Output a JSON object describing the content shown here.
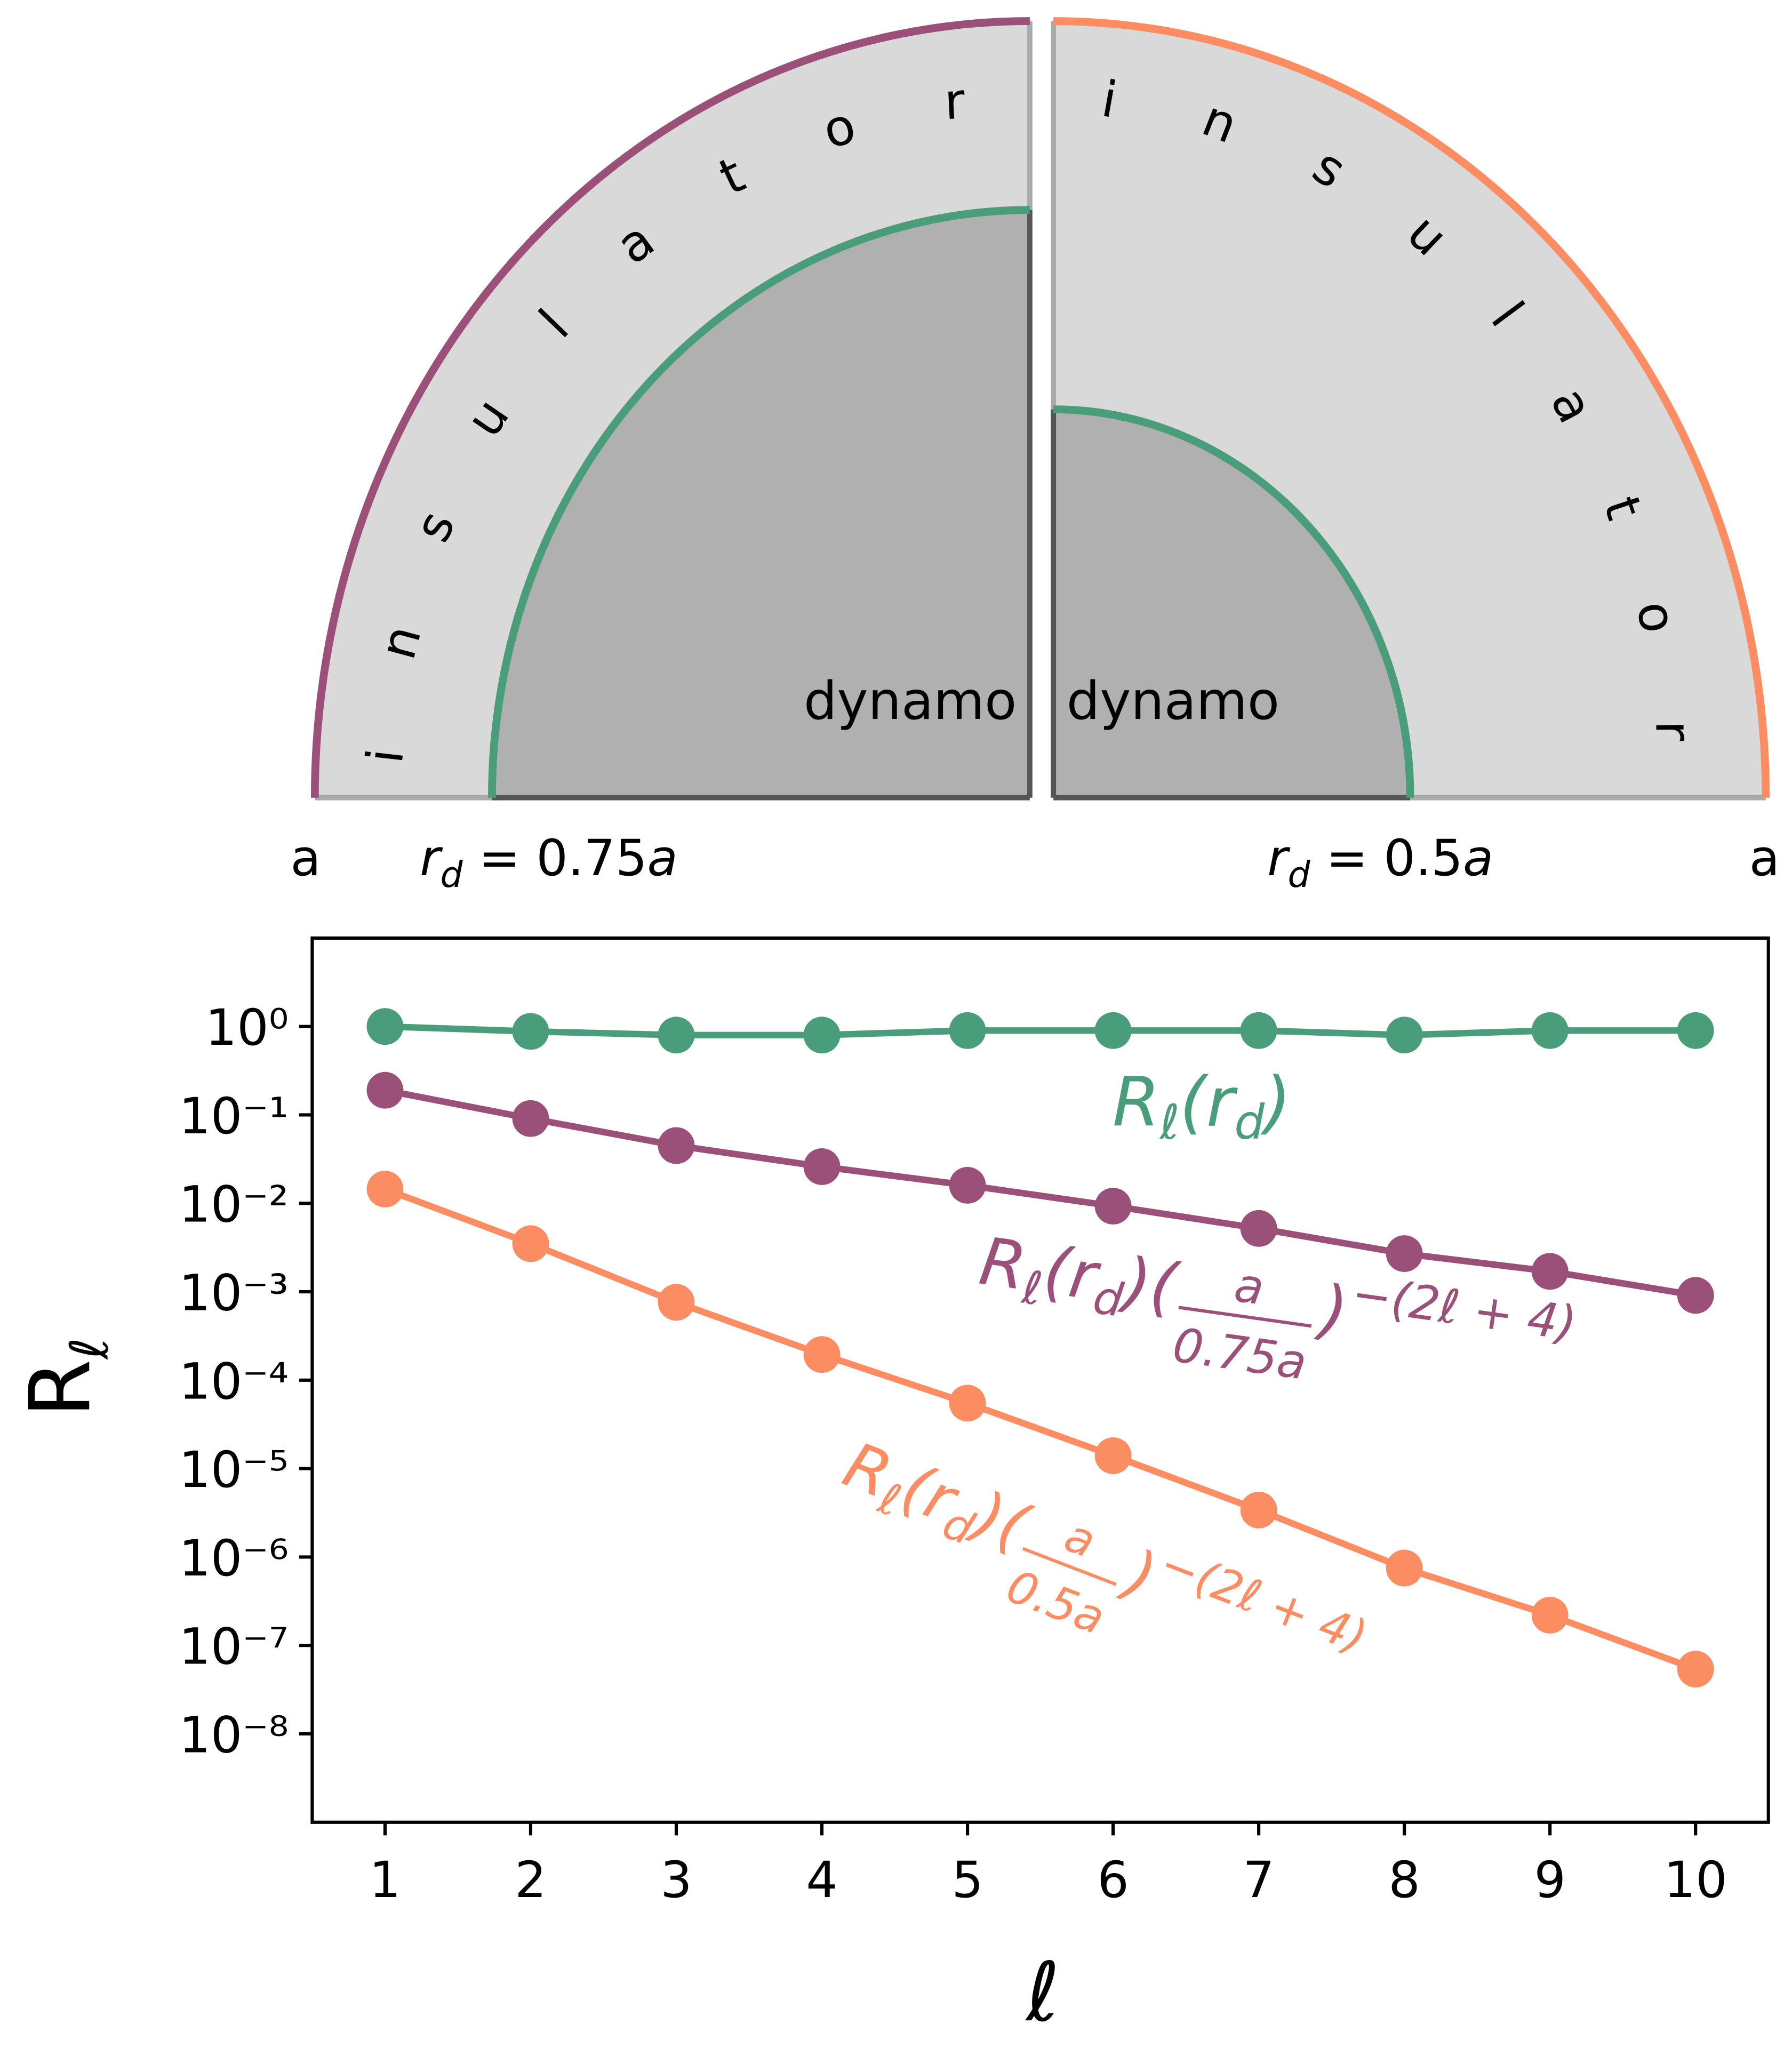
{
  "diagram": {
    "left": {
      "label": "insulator",
      "core": "dynamo",
      "edge": "a",
      "radius": [
        "r",
        "d",
        " = 0.75",
        "a"
      ]
    },
    "right": {
      "label": "insulator",
      "core": "dynamo",
      "edge": "a",
      "radius": [
        "r",
        "d",
        " = 0.5",
        "a"
      ]
    }
  },
  "chart_data": {
    "type": "line",
    "log_y": true,
    "xlabel": "ℓ",
    "ylabel": [
      "R",
      "ℓ"
    ],
    "x": [
      1,
      2,
      3,
      4,
      5,
      6,
      7,
      8,
      9,
      10
    ],
    "xlim": [
      0.5,
      10.5
    ],
    "ylim": [
      1e-09,
      10
    ],
    "xticks": [
      1,
      2,
      3,
      4,
      5,
      6,
      7,
      8,
      9,
      10
    ],
    "yticks": [
      {
        "value": 1,
        "label": "10⁰"
      },
      {
        "value": 0.1,
        "label": "10⁻¹"
      },
      {
        "value": 0.01,
        "label": "10⁻²"
      },
      {
        "value": 0.001,
        "label": "10⁻³"
      },
      {
        "value": 0.0001,
        "label": "10⁻⁴"
      },
      {
        "value": 1e-05,
        "label": "10⁻⁵"
      },
      {
        "value": 1e-06,
        "label": "10⁻⁶"
      },
      {
        "value": 1e-07,
        "label": "10⁻⁷"
      },
      {
        "value": 1e-08,
        "label": "10⁻⁸"
      }
    ],
    "series": [
      {
        "label": [
          "R",
          "ℓ",
          "(r",
          "d",
          ")"
        ],
        "color": "#4a9d7a",
        "values": [
          1.0,
          0.88,
          0.8,
          0.8,
          0.9,
          0.9,
          0.9,
          0.8,
          0.9,
          0.9
        ]
      },
      {
        "label": [
          "R",
          "ℓ",
          "(r",
          "d",
          ")",
          "(",
          "a",
          "0.75a",
          ")",
          "−(2ℓ + 4)"
        ],
        "color": "#9a5078",
        "values": [
          0.19,
          0.091,
          0.045,
          0.026,
          0.016,
          0.0093,
          0.0052,
          0.0027,
          0.0017,
          0.00091
        ]
      },
      {
        "label": [
          "R",
          "ℓ",
          "(r",
          "d",
          ")",
          "(",
          "a",
          "0.5a",
          ")",
          "−(2ℓ + 4)"
        ],
        "color": "#fc8d62",
        "values": [
          0.0145,
          0.0035,
          0.00076,
          0.000195,
          5.5e-05,
          1.4e-05,
          3.4e-06,
          7.5e-07,
          2.2e-07,
          5.4e-08
        ]
      }
    ]
  }
}
